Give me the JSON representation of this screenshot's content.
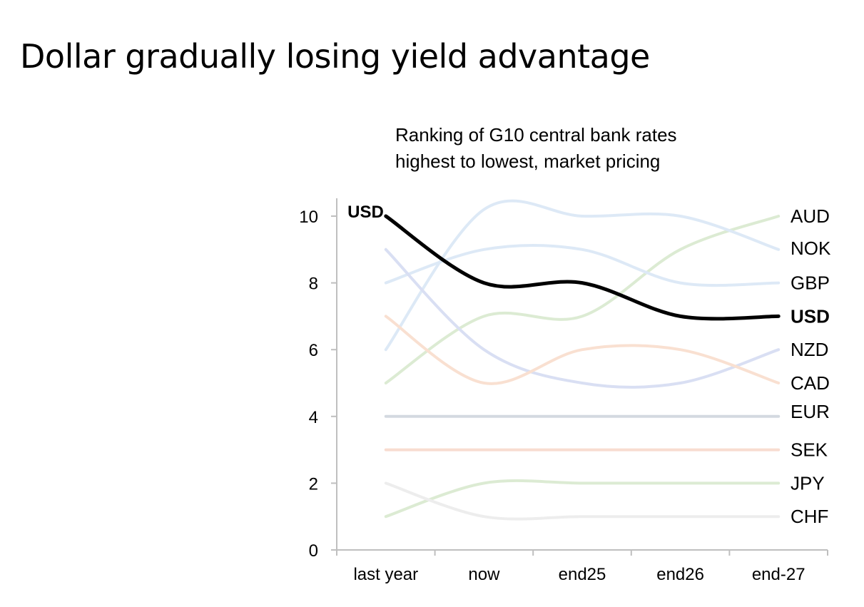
{
  "title": "Dollar gradually losing yield advantage",
  "subtitle_line1": "Ranking of G10 central bank rates",
  "subtitle_line2": "highest to lowest, market pricing",
  "chart_data": {
    "type": "line",
    "smoothed": true,
    "categories": [
      "last year",
      "now",
      "end25",
      "end26",
      "end-27"
    ],
    "ylim": [
      0,
      10
    ],
    "yticks": [
      0,
      2,
      4,
      6,
      8,
      10
    ],
    "grid": false,
    "highlight_series": "USD",
    "start_label": "USD",
    "series": [
      {
        "name": "AUD",
        "values": [
          5,
          7,
          7,
          9,
          10
        ],
        "color": "#dcebd3"
      },
      {
        "name": "NOK",
        "values": [
          6,
          10.2,
          10,
          10,
          9
        ],
        "color": "#dde9f6"
      },
      {
        "name": "GBP",
        "values": [
          8,
          9,
          9,
          8,
          8
        ],
        "color": "#dde9f6"
      },
      {
        "name": "NZD",
        "values": [
          9,
          6,
          5,
          5,
          6
        ],
        "color": "#d9dff3"
      },
      {
        "name": "CAD",
        "values": [
          7,
          5,
          6,
          6,
          5
        ],
        "color": "#f9e0d1"
      },
      {
        "name": "EUR",
        "values": [
          4,
          4,
          4,
          4,
          4
        ],
        "color": "#d3d9e0"
      },
      {
        "name": "SEK",
        "values": [
          3,
          3,
          3,
          3,
          3
        ],
        "color": "#f8dcd0"
      },
      {
        "name": "JPY",
        "values": [
          1,
          2,
          2,
          2,
          2
        ],
        "color": "#dcebd3"
      },
      {
        "name": "CHF",
        "values": [
          2,
          1,
          1,
          1,
          1
        ],
        "color": "#ededed"
      },
      {
        "name": "USD",
        "values": [
          10,
          8,
          8,
          7,
          7
        ],
        "color": "#000000"
      }
    ]
  }
}
